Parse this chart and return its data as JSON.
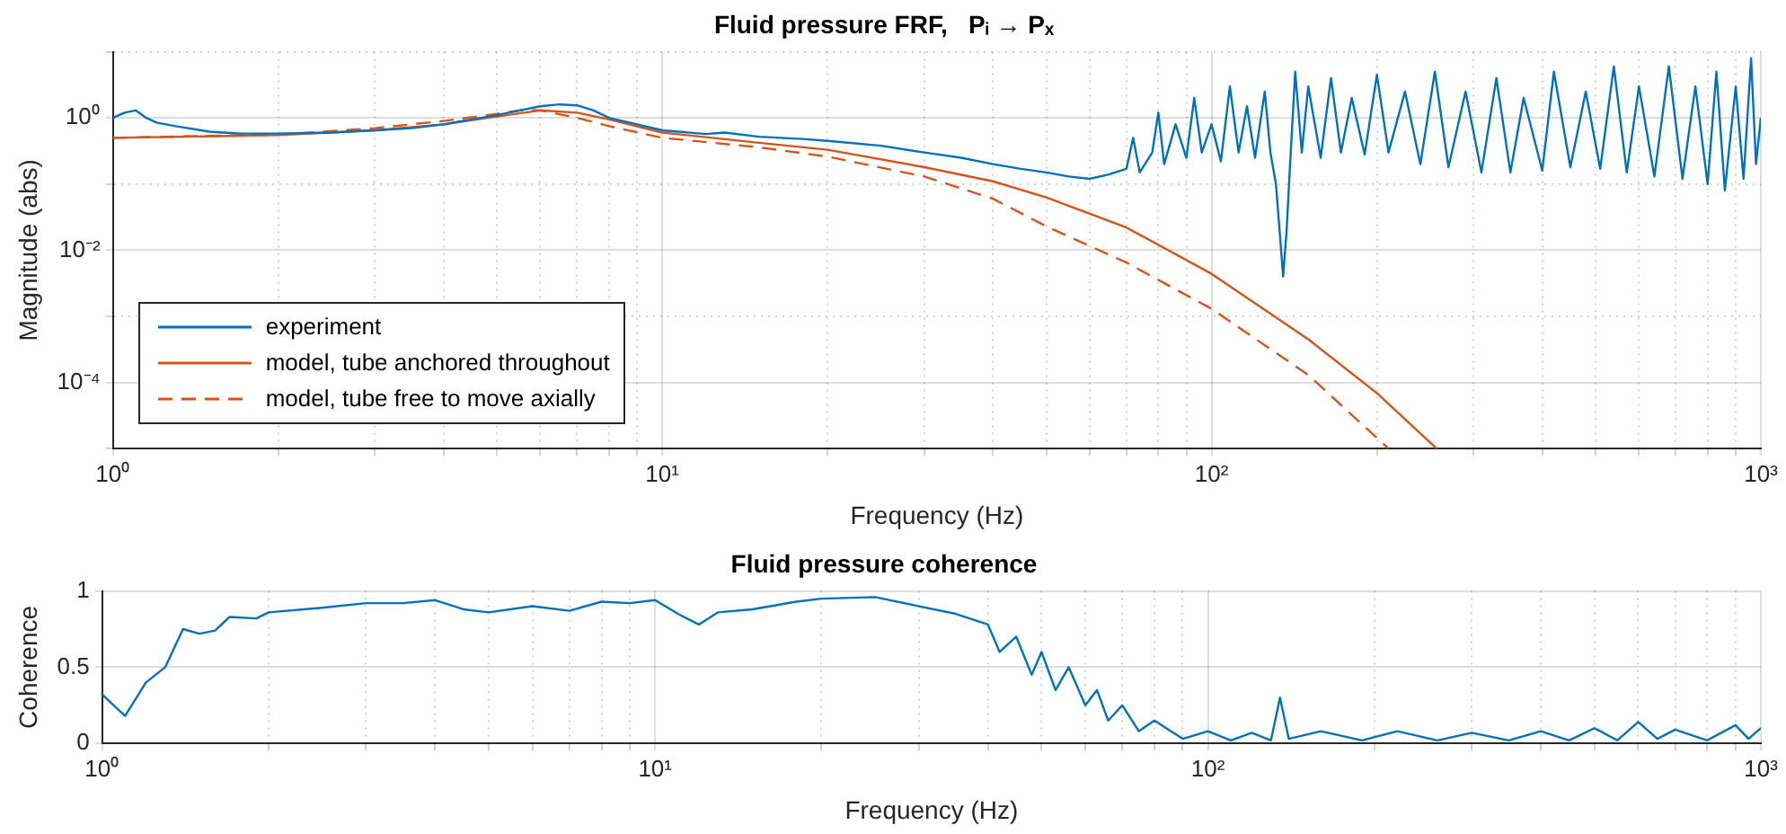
{
  "chart_data": [
    {
      "type": "line",
      "title": "Fluid pressure FRF,   Pᵢ → Pₓ",
      "xlabel": "Frequency (Hz)",
      "ylabel": "Magnitude (abs)",
      "log": "xy",
      "grid": true,
      "legend": "bottom left",
      "marker": "none",
      "xlim": [
        1,
        1000
      ],
      "ylim": [
        1e-05,
        10
      ],
      "xticks": [
        {
          "value": 1,
          "label": "10⁰"
        },
        {
          "value": 2,
          "label": null
        },
        {
          "value": 3,
          "label": null
        },
        {
          "value": 4,
          "label": null
        },
        {
          "value": 5,
          "label": null
        },
        {
          "value": 6,
          "label": null
        },
        {
          "value": 7,
          "label": null
        },
        {
          "value": 8,
          "label": null
        },
        {
          "value": 9,
          "label": null
        },
        {
          "value": 10,
          "label": "10¹"
        },
        {
          "value": 20,
          "label": null
        },
        {
          "value": 30,
          "label": null
        },
        {
          "value": 40,
          "label": null
        },
        {
          "value": 50,
          "label": null
        },
        {
          "value": 60,
          "label": null
        },
        {
          "value": 70,
          "label": null
        },
        {
          "value": 80,
          "label": null
        },
        {
          "value": 90,
          "label": null
        },
        {
          "value": 100,
          "label": "10²"
        },
        {
          "value": 200,
          "label": null
        },
        {
          "value": 300,
          "label": null
        },
        {
          "value": 400,
          "label": null
        },
        {
          "value": 500,
          "label": null
        },
        {
          "value": 600,
          "label": null
        },
        {
          "value": 700,
          "label": null
        },
        {
          "value": 800,
          "label": null
        },
        {
          "value": 900,
          "label": null
        },
        {
          "value": 1000,
          "label": "10³"
        }
      ],
      "yticks": [
        {
          "value": 1e-05,
          "label": null
        },
        {
          "value": 0.0001,
          "label": "10⁻⁴"
        },
        {
          "value": 0.001,
          "label": null
        },
        {
          "value": 0.01,
          "label": "10⁻²"
        },
        {
          "value": 0.1,
          "label": null
        },
        {
          "value": 1,
          "label": "10⁰"
        },
        {
          "value": 10,
          "label": null
        }
      ],
      "series": [
        {
          "name": "experiment",
          "color": "#0072bd",
          "line_style": "solid",
          "x": [
            1,
            1.05,
            1.1,
            1.15,
            1.2,
            1.3,
            1.5,
            1.7,
            2,
            2.5,
            3,
            3.5,
            4,
            4.5,
            5,
            5.5,
            6,
            6.5,
            7,
            7.5,
            8,
            9,
            10,
            12,
            13,
            15,
            18,
            20,
            25,
            30,
            35,
            40,
            45,
            50,
            55,
            60,
            65,
            70,
            72,
            74,
            78,
            80,
            82,
            86,
            90,
            93,
            96,
            100,
            104,
            108,
            112,
            116,
            120,
            125,
            128,
            131,
            133,
            135,
            137,
            139,
            142,
            146,
            150,
            158,
            165,
            172,
            180,
            190,
            200,
            210,
            225,
            240,
            255,
            270,
            290,
            310,
            330,
            350,
            370,
            400,
            420,
            450,
            480,
            510,
            540,
            570,
            600,
            640,
            680,
            720,
            760,
            800,
            830,
            860,
            900,
            930,
            960,
            980,
            1000
          ],
          "values": [
            1.0,
            1.2,
            1.3,
            1.0,
            0.85,
            0.75,
            0.62,
            0.58,
            0.58,
            0.6,
            0.65,
            0.7,
            0.8,
            0.95,
            1.1,
            1.3,
            1.5,
            1.6,
            1.55,
            1.3,
            1.0,
            0.8,
            0.65,
            0.57,
            0.6,
            0.52,
            0.48,
            0.45,
            0.38,
            0.3,
            0.25,
            0.2,
            0.17,
            0.15,
            0.13,
            0.12,
            0.14,
            0.17,
            0.5,
            0.15,
            0.3,
            1.2,
            0.2,
            0.8,
            0.25,
            2.0,
            0.3,
            0.8,
            0.22,
            3.0,
            0.3,
            1.5,
            0.25,
            2.5,
            0.3,
            0.1,
            0.02,
            0.004,
            0.02,
            0.2,
            5.0,
            0.3,
            3.0,
            0.25,
            4.0,
            0.3,
            2.0,
            0.28,
            4.5,
            0.3,
            2.5,
            0.2,
            5.0,
            0.18,
            2.5,
            0.15,
            4.0,
            0.15,
            2.0,
            0.16,
            5.0,
            0.18,
            2.5,
            0.17,
            6.0,
            0.15,
            3.0,
            0.13,
            6.0,
            0.12,
            3.0,
            0.1,
            5.0,
            0.08,
            3.0,
            0.12,
            8.0,
            0.2,
            1.0
          ]
        },
        {
          "name": "model, tube anchored throughout",
          "color": "#d95319",
          "line_style": "solid",
          "x": [
            1,
            2,
            3,
            4,
            5,
            6,
            7,
            8,
            10,
            15,
            20,
            30,
            40,
            50,
            70,
            100,
            150,
            200,
            257
          ],
          "values": [
            0.5,
            0.55,
            0.65,
            0.8,
            1.05,
            1.3,
            1.2,
            0.95,
            0.6,
            0.42,
            0.33,
            0.18,
            0.11,
            0.063,
            0.022,
            0.0044,
            0.00045,
            6.9e-05,
            1e-05
          ]
        },
        {
          "name": "model, tube free to move axially",
          "color": "#d95319",
          "line_style": "dashed",
          "x": [
            1,
            2,
            3,
            4,
            5,
            5.5,
            6,
            7,
            8,
            10,
            15,
            20,
            30,
            40,
            50,
            70,
            100,
            150,
            210
          ],
          "values": [
            0.5,
            0.56,
            0.7,
            0.9,
            1.15,
            1.3,
            1.3,
            1.0,
            0.75,
            0.5,
            0.36,
            0.26,
            0.13,
            0.06,
            0.023,
            0.0065,
            0.0013,
            0.00013,
            1e-05
          ]
        }
      ]
    },
    {
      "type": "line",
      "title": "Fluid pressure coherence",
      "xlabel": "Frequency (Hz)",
      "ylabel": "Coherence",
      "log": "x",
      "grid": true,
      "marker": "none",
      "xlim": [
        1,
        1000
      ],
      "ylim": [
        0,
        1
      ],
      "xticks": [
        {
          "value": 1,
          "label": "10⁰"
        },
        {
          "value": 2,
          "label": null
        },
        {
          "value": 3,
          "label": null
        },
        {
          "value": 4,
          "label": null
        },
        {
          "value": 5,
          "label": null
        },
        {
          "value": 6,
          "label": null
        },
        {
          "value": 7,
          "label": null
        },
        {
          "value": 8,
          "label": null
        },
        {
          "value": 9,
          "label": null
        },
        {
          "value": 10,
          "label": "10¹"
        },
        {
          "value": 20,
          "label": null
        },
        {
          "value": 30,
          "label": null
        },
        {
          "value": 40,
          "label": null
        },
        {
          "value": 50,
          "label": null
        },
        {
          "value": 60,
          "label": null
        },
        {
          "value": 70,
          "label": null
        },
        {
          "value": 80,
          "label": null
        },
        {
          "value": 90,
          "label": null
        },
        {
          "value": 100,
          "label": "10²"
        },
        {
          "value": 200,
          "label": null
        },
        {
          "value": 300,
          "label": null
        },
        {
          "value": 400,
          "label": null
        },
        {
          "value": 500,
          "label": null
        },
        {
          "value": 600,
          "label": null
        },
        {
          "value": 700,
          "label": null
        },
        {
          "value": 800,
          "label": null
        },
        {
          "value": 900,
          "label": null
        },
        {
          "value": 1000,
          "label": "10³"
        }
      ],
      "yticks": [
        0,
        0.5,
        1
      ],
      "series": [
        {
          "color": "#0072bd",
          "line_style": "solid",
          "x": [
            1,
            1.1,
            1.2,
            1.3,
            1.4,
            1.5,
            1.6,
            1.7,
            1.9,
            2,
            2.5,
            3,
            3.5,
            4,
            4.5,
            5,
            6,
            7,
            8,
            9,
            10,
            11,
            12,
            13,
            15,
            18,
            20,
            25,
            30,
            35,
            40,
            42,
            45,
            48,
            50,
            53,
            56,
            60,
            63,
            66,
            70,
            75,
            80,
            90,
            100,
            110,
            120,
            130,
            135,
            140,
            160,
            190,
            220,
            260,
            300,
            350,
            400,
            450,
            500,
            550,
            600,
            650,
            700,
            800,
            900,
            950,
            1000
          ],
          "values": [
            0.32,
            0.18,
            0.4,
            0.5,
            0.75,
            0.72,
            0.74,
            0.83,
            0.82,
            0.86,
            0.89,
            0.92,
            0.92,
            0.94,
            0.88,
            0.86,
            0.9,
            0.87,
            0.93,
            0.92,
            0.94,
            0.85,
            0.78,
            0.86,
            0.88,
            0.93,
            0.95,
            0.96,
            0.9,
            0.85,
            0.78,
            0.6,
            0.7,
            0.45,
            0.6,
            0.35,
            0.5,
            0.25,
            0.35,
            0.15,
            0.25,
            0.08,
            0.15,
            0.03,
            0.08,
            0.02,
            0.07,
            0.02,
            0.3,
            0.03,
            0.08,
            0.02,
            0.08,
            0.02,
            0.07,
            0.02,
            0.08,
            0.02,
            0.1,
            0.02,
            0.14,
            0.03,
            0.09,
            0.02,
            0.12,
            0.03,
            0.1
          ]
        }
      ]
    }
  ]
}
